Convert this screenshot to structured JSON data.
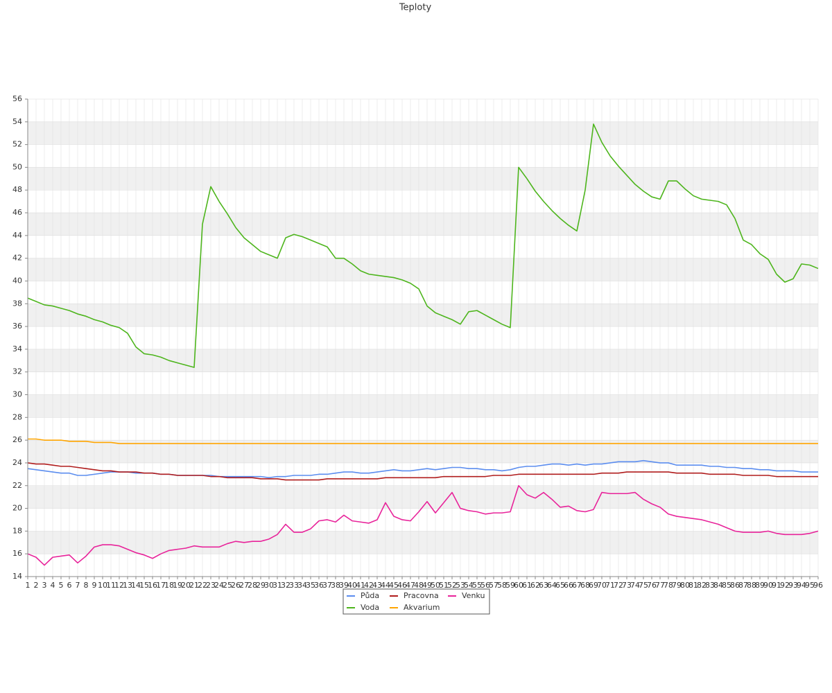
{
  "chart_data": {
    "type": "line",
    "title": "Teploty",
    "x": [
      1,
      2,
      3,
      4,
      5,
      6,
      7,
      8,
      9,
      10,
      11,
      12,
      13,
      14,
      15,
      16,
      17,
      18,
      19,
      20,
      21,
      22,
      23,
      24,
      25,
      26,
      27,
      28,
      29,
      30,
      31,
      32,
      33,
      34,
      35,
      36,
      37,
      38,
      39,
      40,
      41,
      42,
      43,
      44,
      45,
      46,
      47,
      48,
      49,
      50,
      51,
      52,
      53,
      54,
      55,
      56,
      57,
      58,
      59,
      60,
      61,
      62,
      63,
      64,
      65,
      66,
      67,
      68,
      69,
      70,
      71,
      72,
      73,
      74,
      75,
      76,
      77,
      78,
      79,
      80,
      81,
      82,
      83,
      84,
      85,
      86,
      87,
      88,
      89,
      90,
      91,
      92,
      93,
      94,
      95,
      96
    ],
    "xlim": [
      1,
      96
    ],
    "ylim": [
      14,
      56
    ],
    "yticks": [
      14,
      16,
      18,
      20,
      22,
      24,
      26,
      28,
      30,
      32,
      34,
      36,
      38,
      40,
      42,
      44,
      46,
      48,
      50,
      52,
      54,
      56
    ],
    "grid": true,
    "series": [
      {
        "name": "Půda",
        "color": "#5b8def",
        "values": [
          23.5,
          23.4,
          23.3,
          23.2,
          23.1,
          23.1,
          22.9,
          22.9,
          23.0,
          23.1,
          23.2,
          23.2,
          23.2,
          23.1,
          23.1,
          23.1,
          23.0,
          23.0,
          22.9,
          22.9,
          22.9,
          22.9,
          22.9,
          22.8,
          22.8,
          22.8,
          22.8,
          22.8,
          22.8,
          22.7,
          22.8,
          22.8,
          22.9,
          22.9,
          22.9,
          23.0,
          23.0,
          23.1,
          23.2,
          23.2,
          23.1,
          23.1,
          23.2,
          23.3,
          23.4,
          23.3,
          23.3,
          23.4,
          23.5,
          23.4,
          23.5,
          23.6,
          23.6,
          23.5,
          23.5,
          23.4,
          23.4,
          23.3,
          23.4,
          23.6,
          23.7,
          23.7,
          23.8,
          23.9,
          23.9,
          23.8,
          23.9,
          23.8,
          23.9,
          23.9,
          24.0,
          24.1,
          24.1,
          24.1,
          24.2,
          24.1,
          24.0,
          24.0,
          23.8,
          23.8,
          23.8,
          23.8,
          23.7,
          23.7,
          23.6,
          23.6,
          23.5,
          23.5,
          23.4,
          23.4,
          23.3,
          23.3,
          23.3,
          23.2,
          23.2,
          23.2
        ]
      },
      {
        "name": "Pracovna",
        "color": "#b01c1c",
        "values": [
          24.0,
          23.9,
          23.9,
          23.8,
          23.7,
          23.7,
          23.6,
          23.5,
          23.4,
          23.3,
          23.3,
          23.2,
          23.2,
          23.2,
          23.1,
          23.1,
          23.0,
          23.0,
          22.9,
          22.9,
          22.9,
          22.9,
          22.8,
          22.8,
          22.7,
          22.7,
          22.7,
          22.7,
          22.6,
          22.6,
          22.6,
          22.5,
          22.5,
          22.5,
          22.5,
          22.5,
          22.6,
          22.6,
          22.6,
          22.6,
          22.6,
          22.6,
          22.6,
          22.7,
          22.7,
          22.7,
          22.7,
          22.7,
          22.7,
          22.7,
          22.8,
          22.8,
          22.8,
          22.8,
          22.8,
          22.8,
          22.9,
          22.9,
          22.9,
          23.0,
          23.0,
          23.0,
          23.0,
          23.0,
          23.0,
          23.0,
          23.0,
          23.0,
          23.0,
          23.1,
          23.1,
          23.1,
          23.2,
          23.2,
          23.2,
          23.2,
          23.2,
          23.2,
          23.1,
          23.1,
          23.1,
          23.1,
          23.0,
          23.0,
          23.0,
          23.0,
          22.9,
          22.9,
          22.9,
          22.9,
          22.8,
          22.8,
          22.8,
          22.8,
          22.8,
          22.8
        ]
      },
      {
        "name": "Venku",
        "color": "#e8239a",
        "values": [
          16.0,
          15.7,
          15.0,
          15.7,
          15.8,
          15.9,
          15.2,
          15.8,
          16.6,
          16.8,
          16.8,
          16.7,
          16.4,
          16.1,
          15.9,
          15.6,
          16.0,
          16.3,
          16.4,
          16.5,
          16.7,
          16.6,
          16.6,
          16.6,
          16.9,
          17.1,
          17.0,
          17.1,
          17.1,
          17.3,
          17.7,
          18.6,
          17.9,
          17.9,
          18.2,
          18.9,
          19.0,
          18.8,
          19.4,
          18.9,
          18.8,
          18.7,
          19.0,
          20.5,
          19.3,
          19.0,
          18.9,
          19.7,
          20.6,
          19.6,
          20.5,
          21.4,
          20.0,
          19.8,
          19.7,
          19.5,
          19.6,
          19.6,
          19.7,
          22.0,
          21.2,
          20.9,
          21.4,
          20.8,
          20.1,
          20.2,
          19.8,
          19.7,
          19.9,
          21.4,
          21.3,
          21.3,
          21.3,
          21.4,
          20.8,
          20.4,
          20.1,
          19.5,
          19.3,
          19.2,
          19.1,
          19.0,
          18.8,
          18.6,
          18.3,
          18.0,
          17.9,
          17.9,
          17.9,
          18.0,
          17.8,
          17.7,
          17.7,
          17.7,
          17.8,
          18.0
        ]
      },
      {
        "name": "Voda",
        "color": "#4db51c",
        "values": [
          38.5,
          38.2,
          37.9,
          37.8,
          37.6,
          37.4,
          37.1,
          36.9,
          36.6,
          36.4,
          36.1,
          35.9,
          35.4,
          34.2,
          33.6,
          33.5,
          33.3,
          33.0,
          32.8,
          32.6,
          32.4,
          45.0,
          48.3,
          47.0,
          45.9,
          44.7,
          43.8,
          43.2,
          42.6,
          42.3,
          42.0,
          43.8,
          44.1,
          43.9,
          43.6,
          43.3,
          43.0,
          42.0,
          42.0,
          41.5,
          40.9,
          40.6,
          40.5,
          40.4,
          40.3,
          40.1,
          39.8,
          39.3,
          37.8,
          37.2,
          36.9,
          36.6,
          36.2,
          37.3,
          37.4,
          37.0,
          36.6,
          36.2,
          35.9,
          50.0,
          49.0,
          47.9,
          47.0,
          46.2,
          45.5,
          44.9,
          44.4,
          48.0,
          53.8,
          52.2,
          51.0,
          50.1,
          49.3,
          48.5,
          47.9,
          47.4,
          47.2,
          48.8,
          48.8,
          48.1,
          47.5,
          47.2,
          47.1,
          47.0,
          46.7,
          45.5,
          43.6,
          43.2,
          42.4,
          41.9,
          40.6,
          39.9,
          40.2,
          41.5,
          41.4,
          41.1
        ]
      },
      {
        "name": "Akvarium",
        "color": "#ffa500",
        "values": [
          26.1,
          26.1,
          26.0,
          26.0,
          26.0,
          25.9,
          25.9,
          25.9,
          25.8,
          25.8,
          25.8,
          25.7,
          25.7,
          25.7,
          25.7,
          25.7,
          25.7,
          25.7,
          25.7,
          25.7,
          25.7,
          25.7,
          25.7,
          25.7,
          25.7,
          25.7,
          25.7,
          25.7,
          25.7,
          25.7,
          25.7,
          25.7,
          25.7,
          25.7,
          25.7,
          25.7,
          25.7,
          25.7,
          25.7,
          25.7,
          25.7,
          25.7,
          25.7,
          25.7,
          25.7,
          25.7,
          25.7,
          25.7,
          25.7,
          25.7,
          25.7,
          25.7,
          25.7,
          25.7,
          25.7,
          25.7,
          25.7,
          25.7,
          25.7,
          25.7,
          25.7,
          25.7,
          25.7,
          25.7,
          25.7,
          25.7,
          25.7,
          25.7,
          25.7,
          25.7,
          25.7,
          25.7,
          25.7,
          25.7,
          25.7,
          25.7,
          25.7,
          25.7,
          25.7,
          25.7,
          25.7,
          25.7,
          25.7,
          25.7,
          25.7,
          25.7,
          25.7,
          25.7,
          25.7,
          25.7,
          25.7,
          25.7,
          25.7,
          25.7,
          25.7,
          25.7
        ]
      }
    ]
  }
}
